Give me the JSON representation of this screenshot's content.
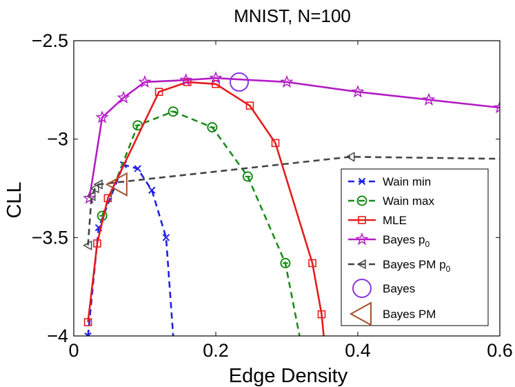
{
  "chart_data": {
    "type": "line",
    "title": "MNIST, N=100",
    "xlabel": "Edge Density",
    "ylabel": "CLL",
    "xlim": [
      0,
      0.6
    ],
    "ylim": [
      -4,
      -2.5
    ],
    "xticks": [
      0,
      0.2,
      0.4,
      0.6
    ],
    "xtick_labels": [
      "0",
      "0.2",
      "0.4",
      "0.6"
    ],
    "yticks": [
      -4,
      -3.5,
      -3,
      -2.5
    ],
    "ytick_labels": [
      "−4",
      "−3.5",
      "−3",
      "−2.5"
    ],
    "grid": false,
    "legend_position": "lower-right",
    "series": [
      {
        "name": "Wain min",
        "color": "#1f1fe6",
        "dash": "dashed",
        "marker": "x",
        "x": [
          0.02,
          0.035,
          0.07,
          0.09,
          0.11,
          0.13,
          0.14
        ],
        "y": [
          -4.0,
          -3.45,
          -3.13,
          -3.15,
          -3.26,
          -3.5,
          -4.0
        ],
        "marked": [
          true,
          true,
          true,
          true,
          true,
          true,
          false
        ]
      },
      {
        "name": "Wain max",
        "color": "#1a8a1a",
        "dash": "dashed",
        "marker": "circle-dash",
        "x": [
          0.04,
          0.09,
          0.14,
          0.195,
          0.245,
          0.298,
          0.318
        ],
        "y": [
          -3.39,
          -2.93,
          -2.86,
          -2.94,
          -3.19,
          -3.63,
          -4.0
        ],
        "marked": [
          true,
          true,
          true,
          true,
          true,
          true,
          false
        ]
      },
      {
        "name": "MLE",
        "color": "#e51b1b",
        "dash": "solid",
        "marker": "square",
        "x": [
          0.02,
          0.033,
          0.048,
          0.12,
          0.16,
          0.2,
          0.248,
          0.284,
          0.336,
          0.349,
          0.352
        ],
        "y": [
          -3.93,
          -3.53,
          -3.3,
          -2.76,
          -2.71,
          -2.72,
          -2.83,
          -3.02,
          -3.63,
          -3.89,
          -4.0
        ],
        "marked": [
          true,
          true,
          true,
          true,
          true,
          true,
          true,
          true,
          true,
          true,
          false
        ]
      },
      {
        "name": "Bayes p₀",
        "label_main": "Bayes p",
        "label_sub": "0",
        "color": "#b21cc4",
        "dash": "solid",
        "marker": "star",
        "x": [
          0.022,
          0.04,
          0.07,
          0.1,
          0.158,
          0.2,
          0.3,
          0.4,
          0.5,
          0.6
        ],
        "y": [
          -3.3,
          -2.89,
          -2.79,
          -2.71,
          -2.7,
          -2.69,
          -2.71,
          -2.76,
          -2.8,
          -2.84
        ],
        "marked": [
          true,
          true,
          true,
          true,
          true,
          true,
          true,
          true,
          true,
          true
        ]
      },
      {
        "name": "Bayes PM p₀",
        "label_main": "Bayes PM p",
        "label_sub": "0",
        "color": "#444444",
        "dash": "dashed",
        "marker": "triangle-left",
        "x": [
          0.02,
          0.025,
          0.03,
          0.035,
          0.39,
          0.6
        ],
        "y": [
          -3.54,
          -3.29,
          -3.25,
          -3.23,
          -3.09,
          -3.1
        ],
        "marked": [
          true,
          true,
          true,
          true,
          true,
          false
        ]
      }
    ],
    "highlights": [
      {
        "name": "Bayes",
        "color": "#8a33e0",
        "marker": "big-circle",
        "x": 0.233,
        "y": -2.71
      },
      {
        "name": "Bayes PM",
        "color": "#a0522d",
        "marker": "big-triangle-left",
        "x": 0.062,
        "y": -3.23
      }
    ]
  }
}
